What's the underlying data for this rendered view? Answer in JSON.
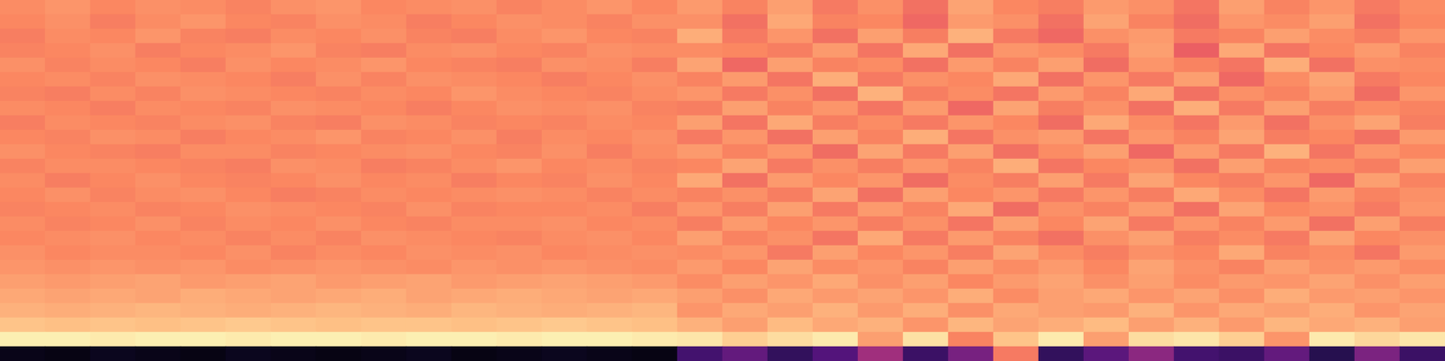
{
  "chart_data": {
    "type": "heatmap",
    "tick_labels": false,
    "grid": false,
    "zlim": [
      0,
      100
    ],
    "cells": [
      [
        76,
        78,
        75,
        77,
        76,
        74,
        77,
        78,
        75,
        76,
        77,
        74,
        76,
        78,
        75,
        79,
        74,
        80,
        72,
        77,
        70,
        81,
        75,
        73,
        79,
        77,
        71,
        80,
        74,
        78,
        72,
        76
      ],
      [
        75,
        77,
        73,
        76,
        78,
        75,
        74,
        77,
        76,
        73,
        75,
        77,
        76,
        74,
        77,
        77,
        70,
        82,
        74,
        75,
        68,
        79,
        77,
        70,
        81,
        74,
        69,
        78,
        76,
        80,
        70,
        75
      ],
      [
        73,
        76,
        75,
        78,
        74,
        73,
        76,
        75,
        77,
        74,
        73,
        76,
        78,
        75,
        74,
        83,
        72,
        78,
        70,
        80,
        73,
        84,
        72,
        68,
        77,
        79,
        72,
        74,
        80,
        76,
        73,
        78
      ],
      [
        74,
        75,
        77,
        73,
        75,
        76,
        78,
        74,
        73,
        76,
        77,
        75,
        74,
        77,
        76,
        76,
        75,
        73,
        79,
        71,
        82,
        70,
        78,
        76,
        72,
        80,
        66,
        82,
        71,
        75,
        79,
        74
      ],
      [
        77,
        74,
        76,
        75,
        73,
        77,
        75,
        76,
        78,
        75,
        74,
        73,
        77,
        76,
        73,
        81,
        68,
        80,
        74,
        76,
        70,
        79,
        74,
        80,
        69,
        78,
        74,
        71,
        83,
        70,
        77,
        76
      ],
      [
        75,
        76,
        74,
        77,
        76,
        75,
        73,
        77,
        74,
        77,
        76,
        75,
        73,
        75,
        77,
        74,
        79,
        71,
        83,
        72,
        77,
        75,
        82,
        70,
        78,
        72,
        80,
        68,
        76,
        81,
        72,
        75
      ],
      [
        74,
        73,
        76,
        74,
        77,
        76,
        75,
        74,
        76,
        75,
        78,
        76,
        75,
        74,
        76,
        78,
        72,
        77,
        70,
        84,
        73,
        76,
        71,
        79,
        74,
        82,
        70,
        77,
        74,
        79,
        69,
        78
      ],
      [
        76,
        75,
        73,
        76,
        75,
        74,
        77,
        76,
        75,
        73,
        75,
        77,
        76,
        77,
        74,
        73,
        80,
        74,
        78,
        71,
        79,
        68,
        81,
        73,
        77,
        70,
        83,
        72,
        80,
        73,
        76,
        74
      ],
      [
        73,
        76,
        75,
        74,
        76,
        77,
        74,
        73,
        77,
        76,
        74,
        75,
        74,
        76,
        75,
        80,
        71,
        82,
        73,
        76,
        72,
        78,
        75,
        69,
        82,
        76,
        71,
        79,
        70,
        77,
        81,
        73
      ],
      [
        75,
        74,
        77,
        76,
        73,
        75,
        76,
        78,
        74,
        75,
        77,
        73,
        76,
        75,
        77,
        72,
        78,
        70,
        80,
        74,
        83,
        71,
        77,
        79,
        71,
        78,
        74,
        81,
        73,
        75,
        70,
        79
      ],
      [
        77,
        75,
        74,
        73,
        76,
        76,
        74,
        75,
        76,
        77,
        75,
        74,
        77,
        73,
        76,
        79,
        74,
        78,
        69,
        81,
        72,
        80,
        70,
        76,
        80,
        68,
        79,
        72,
        84,
        71,
        78,
        75
      ],
      [
        74,
        76,
        76,
        75,
        74,
        73,
        77,
        76,
        73,
        74,
        76,
        78,
        75,
        76,
        74,
        75,
        81,
        72,
        77,
        73,
        78,
        74,
        83,
        71,
        75,
        77,
        70,
        80,
        74,
        76,
        73,
        80
      ],
      [
        76,
        73,
        75,
        77,
        75,
        74,
        75,
        77,
        75,
        76,
        73,
        75,
        74,
        77,
        75,
        82,
        70,
        79,
        75,
        78,
        69,
        76,
        73,
        80,
        72,
        81,
        75,
        73,
        78,
        68,
        80,
        74
      ],
      [
        75,
        77,
        74,
        76,
        77,
        75,
        73,
        74,
        76,
        75,
        76,
        77,
        76,
        74,
        76,
        74,
        77,
        73,
        81,
        70,
        80,
        75,
        78,
        72,
        78,
        73,
        82,
        76,
        71,
        79,
        74,
        77
      ],
      [
        74,
        75,
        76,
        74,
        75,
        77,
        76,
        75,
        74,
        77,
        74,
        75,
        75,
        76,
        73,
        78,
        73,
        80,
        72,
        79,
        74,
        82,
        69,
        77,
        74,
        79,
        70,
        81,
        75,
        77,
        72,
        78
      ],
      [
        76,
        74,
        75,
        77,
        74,
        76,
        75,
        77,
        75,
        74,
        76,
        76,
        77,
        75,
        76,
        73,
        79,
        75,
        78,
        73,
        77,
        71,
        80,
        75,
        81,
        72,
        78,
        74,
        79,
        70,
        80,
        73
      ],
      [
        75,
        76,
        77,
        75,
        76,
        74,
        76,
        74,
        77,
        76,
        75,
        74,
        76,
        77,
        75,
        80,
        74,
        77,
        71,
        82,
        72,
        79,
        74,
        70,
        77,
        80,
        73,
        76,
        72,
        81,
        75,
        77
      ],
      [
        77,
        75,
        76,
        76,
        75,
        77,
        74,
        76,
        75,
        77,
        76,
        77,
        75,
        76,
        77,
        76,
        78,
        72,
        80,
        75,
        78,
        73,
        81,
        76,
        73,
        77,
        75,
        82,
        74,
        76,
        71,
        79
      ],
      [
        78,
        77,
        78,
        77,
        78,
        76,
        77,
        78,
        77,
        76,
        78,
        77,
        78,
        77,
        76,
        79,
        75,
        81,
        76,
        78,
        74,
        80,
        76,
        79,
        75,
        81,
        77,
        74,
        80,
        77,
        79,
        76
      ],
      [
        80,
        79,
        80,
        81,
        79,
        80,
        81,
        79,
        80,
        81,
        79,
        80,
        81,
        80,
        79,
        76,
        80,
        78,
        82,
        77,
        80,
        75,
        79,
        81,
        77,
        80,
        76,
        79,
        78,
        81,
        77,
        80
      ],
      [
        82,
        81,
        82,
        81,
        83,
        82,
        81,
        82,
        83,
        81,
        82,
        83,
        82,
        81,
        82,
        80,
        77,
        82,
        79,
        81,
        78,
        83,
        76,
        80,
        82,
        78,
        81,
        77,
        83,
        79,
        80,
        78
      ],
      [
        84,
        83,
        84,
        85,
        84,
        83,
        84,
        85,
        84,
        83,
        85,
        84,
        83,
        84,
        85,
        78,
        82,
        80,
        84,
        79,
        83,
        77,
        82,
        80,
        79,
        84,
        78,
        82,
        80,
        83,
        78,
        81
      ],
      [
        88,
        87,
        88,
        87,
        88,
        89,
        88,
        87,
        88,
        88,
        87,
        88,
        89,
        88,
        87,
        84,
        80,
        86,
        82,
        84,
        78,
        85,
        81,
        83,
        86,
        80,
        84,
        79,
        85,
        82,
        84,
        80
      ],
      [
        97,
        97,
        96,
        97,
        97,
        96,
        97,
        97,
        96,
        97,
        97,
        96,
        97,
        97,
        96,
        95,
        90,
        93,
        96,
        80,
        94,
        74,
        88,
        96,
        80,
        93,
        95,
        90,
        78,
        96,
        92,
        95
      ],
      [
        4,
        3,
        5,
        4,
        3,
        5,
        4,
        3,
        4,
        5,
        3,
        4,
        5,
        4,
        3,
        22,
        30,
        18,
        26,
        45,
        20,
        35,
        72,
        18,
        28,
        40,
        22,
        20,
        30,
        15,
        36,
        20
      ]
    ]
  }
}
